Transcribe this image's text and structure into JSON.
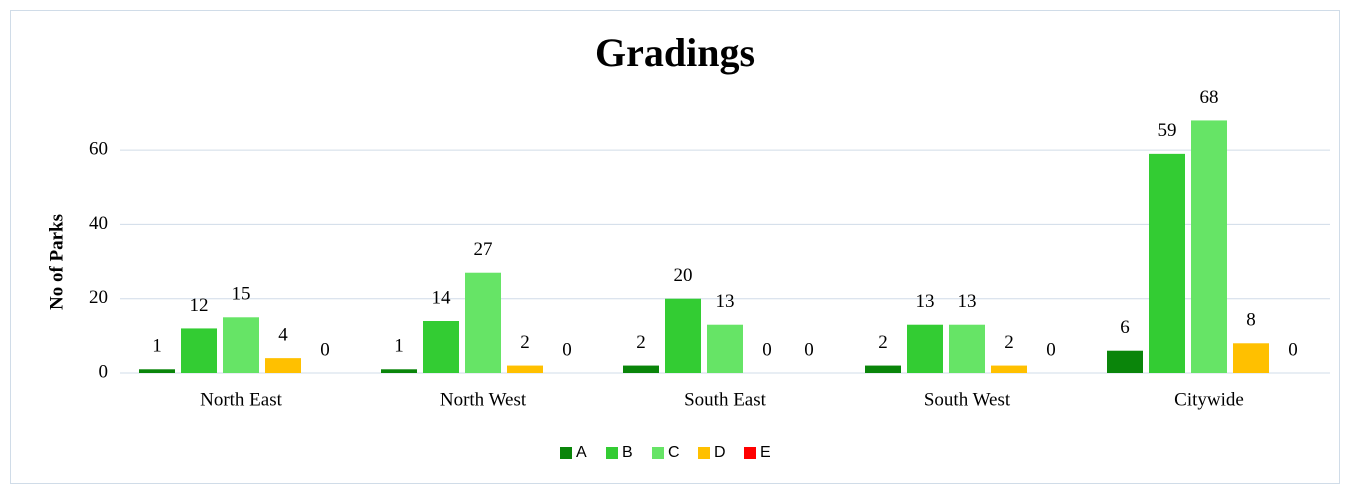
{
  "chart_data": {
    "type": "bar",
    "title": "Gradings",
    "y_label": "No of Parks",
    "categories": [
      "North East",
      "North West",
      "South East",
      "South West",
      "Citywide"
    ],
    "series": [
      {
        "name": "A",
        "color": "#0a850a",
        "values": [
          1,
          1,
          2,
          2,
          6
        ]
      },
      {
        "name": "B",
        "color": "#33cc33",
        "values": [
          12,
          14,
          20,
          13,
          59
        ]
      },
      {
        "name": "C",
        "color": "#66e466",
        "values": [
          15,
          27,
          13,
          13,
          68
        ]
      },
      {
        "name": "D",
        "color": "#ffc000",
        "values": [
          4,
          2,
          0,
          2,
          8
        ]
      },
      {
        "name": "E",
        "color": "#ff0000",
        "values": [
          0,
          0,
          0,
          0,
          0
        ]
      }
    ],
    "ylim": [
      0,
      70
    ],
    "yticks": [
      0,
      20,
      40,
      60
    ],
    "grid": true,
    "legend": "bottom"
  }
}
